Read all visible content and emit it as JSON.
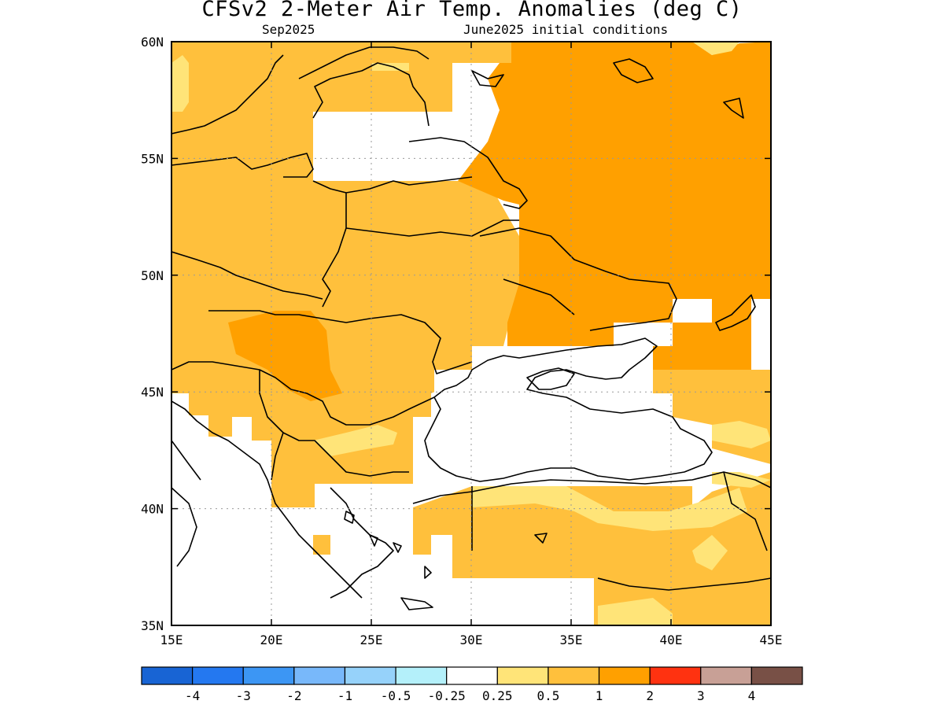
{
  "title": "CFSv2 2-Meter Air Temp. Anomalies (deg C)",
  "subtitle_left": "Sep2025",
  "subtitle_right": "June2025 initial conditions",
  "lat_labels": [
    "60N",
    "55N",
    "50N",
    "45N",
    "40N",
    "35N"
  ],
  "lon_labels": [
    "15E",
    "20E",
    "25E",
    "30E",
    "35E",
    "40E",
    "45E"
  ],
  "legend": {
    "colors": [
      "#1864d4",
      "#2478f0",
      "#3c96f4",
      "#78b8fa",
      "#96d2fa",
      "#b4f0fa",
      "#ffffff",
      "#ffe478",
      "#ffc03c",
      "#ffa000",
      "#ff3210",
      "#c8a096",
      "#785046"
    ],
    "labels": [
      "-4",
      "-3",
      "-2",
      "-1",
      "-0.5",
      "-0.25",
      "0.25",
      "0.5",
      "1",
      "2",
      "3",
      "4"
    ]
  },
  "palette": {
    "light": "#ffe478",
    "mid": "#ffc03c",
    "strong": "#ffa000"
  }
}
